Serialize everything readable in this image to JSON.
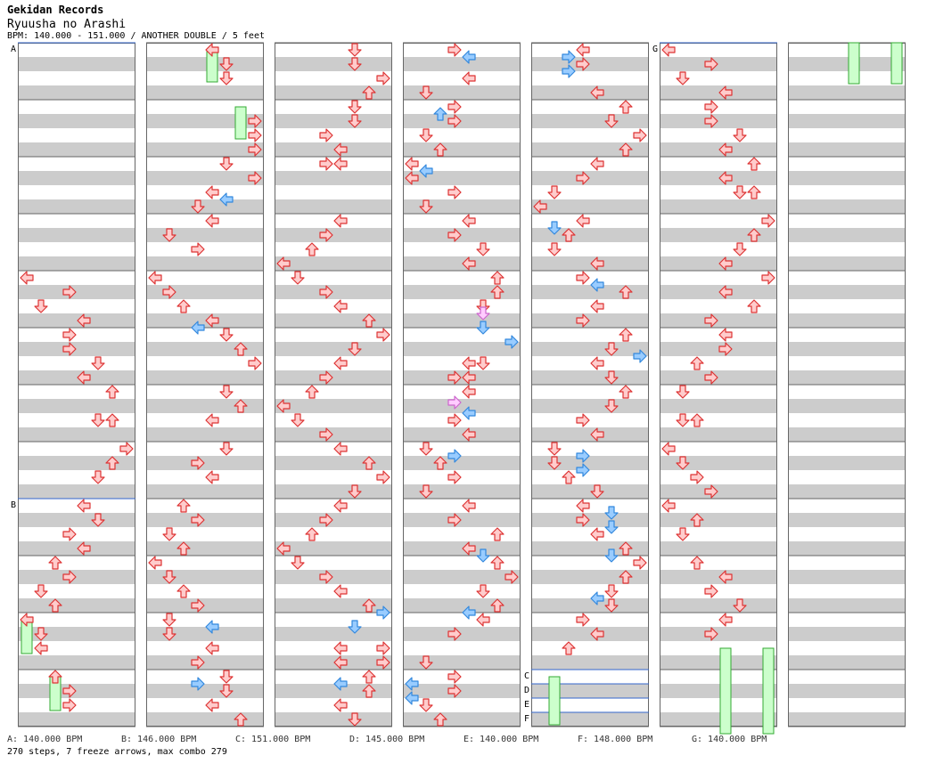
{
  "header": {
    "group": "Gekidan Records",
    "song": "Ryuusha no Arashi",
    "info": "BPM: 140.000 - 151.000 / ANOTHER DOUBLE / 5 feet"
  },
  "section_markers": [
    "A",
    "B",
    "C",
    "D",
    "E",
    "F",
    "G"
  ],
  "legend": [
    "A: 140.000 BPM",
    "B: 146.000 BPM",
    "C: 151.000 BPM",
    "D: 145.000 BPM",
    "E: 140.000 BPM",
    "F: 148.000 BPM",
    "G: 140.000 BPM"
  ],
  "stats": "270 steps, 7 freeze arrows, max combo 279",
  "colors": {
    "stripe": "#cccccc",
    "arrow_red_fill": "#ffcccc",
    "arrow_red_stroke": "#dd3333",
    "arrow_blue_fill": "#99ccff",
    "arrow_blue_stroke": "#3388dd",
    "arrow_pink_fill": "#ffccff",
    "arrow_pink_stroke": "#cc66cc",
    "freeze_fill": "#ccffcc",
    "freeze_stroke": "#33aa33",
    "bpm_line": "#3366cc"
  }
}
